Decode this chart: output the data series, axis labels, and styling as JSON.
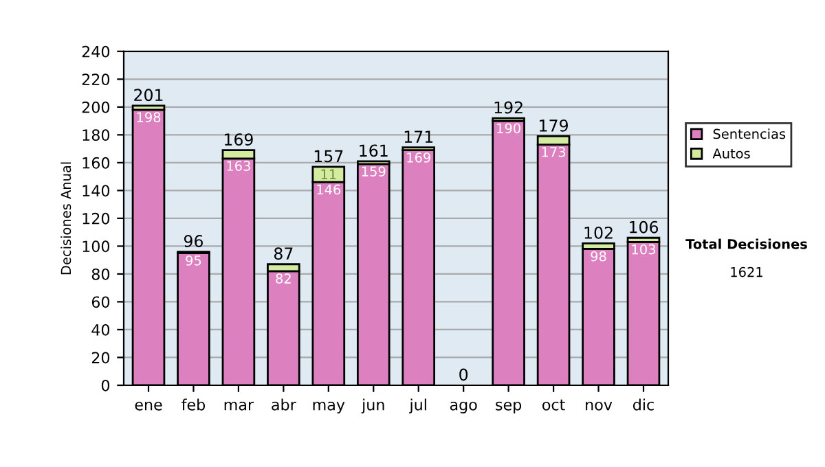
{
  "chart_data": {
    "type": "bar",
    "stacked": true,
    "ylabel": "Decisiones Anual",
    "categories": [
      "ene",
      "feb",
      "mar",
      "abr",
      "may",
      "jun",
      "jul",
      "ago",
      "sep",
      "oct",
      "nov",
      "dic"
    ],
    "series": [
      {
        "name": "Sentencias",
        "color": "#dd80c0",
        "values": [
          198,
          95,
          163,
          82,
          146,
          159,
          169,
          0,
          190,
          173,
          98,
          103
        ],
        "value_labels": [
          "198",
          "95",
          "163",
          "82",
          "146",
          "159",
          "169",
          null,
          "190",
          "173",
          "98",
          "103"
        ]
      },
      {
        "name": "Autos",
        "color": "#d4eca0",
        "values": [
          3,
          1,
          6,
          5,
          11,
          2,
          2,
          0,
          2,
          6,
          4,
          3
        ],
        "value_labels": [
          null,
          null,
          null,
          null,
          "11",
          null,
          null,
          null,
          null,
          null,
          null,
          null
        ]
      }
    ],
    "totals": [
      "201",
      "96",
      "169",
      "87",
      "157",
      "161",
      "171",
      "0",
      "192",
      "179",
      "102",
      "106"
    ],
    "ylim": [
      0,
      240
    ],
    "yticks": [
      0,
      20,
      40,
      60,
      80,
      100,
      120,
      140,
      160,
      180,
      200,
      220,
      240
    ],
    "grid": "y",
    "legend": "right",
    "annotations": [
      "Total Decisiones",
      "1621"
    ]
  }
}
